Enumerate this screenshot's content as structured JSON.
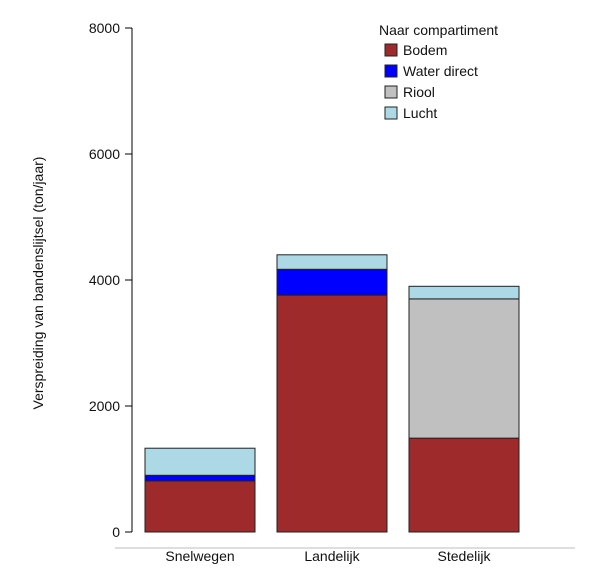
{
  "chart_data": {
    "type": "bar",
    "stacked": true,
    "title": "",
    "xlabel": "",
    "ylabel": "Verspreiding van bandenslijtsel  (ton/jaar)",
    "ylim": [
      0,
      8000
    ],
    "yticks": [
      0,
      2000,
      4000,
      6000,
      8000
    ],
    "categories": [
      "Snelwegen",
      "Landelijk",
      "Stedelijk"
    ],
    "series": [
      {
        "name": "Bodem",
        "color": "#9E2A2B",
        "values": [
          810,
          3760,
          1490
        ]
      },
      {
        "name": "Water direct",
        "color": "#0000FF",
        "values": [
          90,
          410,
          0
        ]
      },
      {
        "name": "Riool",
        "color": "#C0C0C0",
        "values": [
          0,
          0,
          2210
        ]
      },
      {
        "name": "Lucht",
        "color": "#ADD8E6",
        "values": [
          430,
          230,
          200
        ]
      }
    ],
    "legend": {
      "title": "Naar compartiment",
      "placement": "top-right",
      "order": [
        "Bodem",
        "Water direct",
        "Riool",
        "Lucht"
      ]
    },
    "grid": false
  }
}
